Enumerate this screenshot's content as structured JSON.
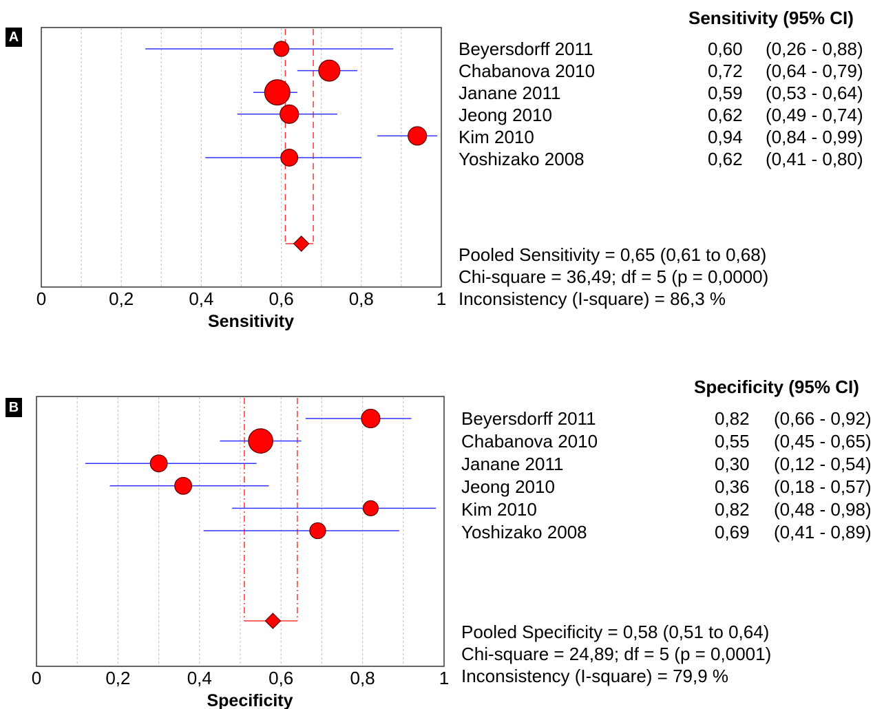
{
  "chart_data": [
    {
      "type": "forest",
      "panel_label": "A",
      "xlabel": "Sensitivity",
      "xlim": [
        0,
        1
      ],
      "xticks": [
        "0",
        "0,2",
        "0,4",
        "0,6",
        "0,8",
        "1"
      ],
      "table_header": "Sensitivity (95% CI)",
      "studies": [
        {
          "name": "Beyersdorff 2011",
          "estimate": 0.6,
          "low": 0.26,
          "high": 0.88,
          "estimate_label": "0,60",
          "ci_label": "(0,26 - 0,88)",
          "weight": 1
        },
        {
          "name": "Chabanova 2010",
          "estimate": 0.72,
          "low": 0.64,
          "high": 0.79,
          "estimate_label": "0,72",
          "ci_label": "(0,64 - 0,79)",
          "weight": 3
        },
        {
          "name": "Janane 2011",
          "estimate": 0.59,
          "low": 0.53,
          "high": 0.64,
          "estimate_label": "0,59",
          "ci_label": "(0,53 - 0,64)",
          "weight": 5
        },
        {
          "name": "Jeong 2010",
          "estimate": 0.62,
          "low": 0.49,
          "high": 0.74,
          "estimate_label": "0,62",
          "ci_label": "(0,49 - 0,74)",
          "weight": 2
        },
        {
          "name": "Kim 2010",
          "estimate": 0.94,
          "low": 0.84,
          "high": 0.99,
          "estimate_label": "0,94",
          "ci_label": "(0,84 - 0,99)",
          "weight": 2
        },
        {
          "name": "Yoshizako 2008",
          "estimate": 0.62,
          "low": 0.41,
          "high": 0.8,
          "estimate_label": "0,62",
          "ci_label": "(0,41 - 0,80)",
          "weight": 1.5
        }
      ],
      "pooled": {
        "estimate": 0.65,
        "low": 0.61,
        "high": 0.68
      },
      "stats_lines": [
        "Pooled Sensitivity = 0,65 (0,61 to 0,68)",
        "Chi-square = 36,49; df =  5 (p = 0,0000)",
        "Inconsistency (I-square) = 86,3 %"
      ],
      "colors": {
        "ci_line": "#3333ff",
        "marker": "#ff0000",
        "pooled_line": "#ff3333",
        "grid": "#c8c8c8"
      }
    },
    {
      "type": "forest",
      "panel_label": "B",
      "xlabel": "Specificity",
      "xlim": [
        0,
        1
      ],
      "xticks": [
        "0",
        "0,2",
        "0,4",
        "0,6",
        "0,8",
        "1"
      ],
      "table_header": "Specificity (95% CI)",
      "studies": [
        {
          "name": "Beyersdorff 2011",
          "estimate": 0.82,
          "low": 0.66,
          "high": 0.92,
          "estimate_label": "0,82",
          "ci_label": "(0,66 - 0,92)",
          "weight": 2
        },
        {
          "name": "Chabanova 2010",
          "estimate": 0.55,
          "low": 0.45,
          "high": 0.65,
          "estimate_label": "0,55",
          "ci_label": "(0,45 - 0,65)",
          "weight": 4.5
        },
        {
          "name": "Janane 2011",
          "estimate": 0.3,
          "low": 0.12,
          "high": 0.54,
          "estimate_label": "0,30",
          "ci_label": "(0,12 - 0,54)",
          "weight": 1.5
        },
        {
          "name": "Jeong 2010",
          "estimate": 0.36,
          "low": 0.18,
          "high": 0.57,
          "estimate_label": "0,36",
          "ci_label": "(0,18 - 0,57)",
          "weight": 1.5
        },
        {
          "name": "Kim 2010",
          "estimate": 0.82,
          "low": 0.48,
          "high": 0.98,
          "estimate_label": "0,82",
          "ci_label": "(0,48 - 0,98)",
          "weight": 1
        },
        {
          "name": "Yoshizako 2008",
          "estimate": 0.69,
          "low": 0.41,
          "high": 0.89,
          "estimate_label": "0,69",
          "ci_label": "(0,41 - 0,89)",
          "weight": 1.2
        }
      ],
      "pooled": {
        "estimate": 0.58,
        "low": 0.51,
        "high": 0.64
      },
      "stats_lines": [
        "Pooled Specificity = 0,58 (0,51 to 0,64)",
        "Chi-square = 24,89; df =  5 (p = 0,0001)",
        "Inconsistency (I-square) = 79,9 %"
      ],
      "colors": {
        "ci_line": "#3333ff",
        "marker": "#ff0000",
        "pooled_line": "#ff3333",
        "grid": "#c8c8c8"
      }
    }
  ]
}
